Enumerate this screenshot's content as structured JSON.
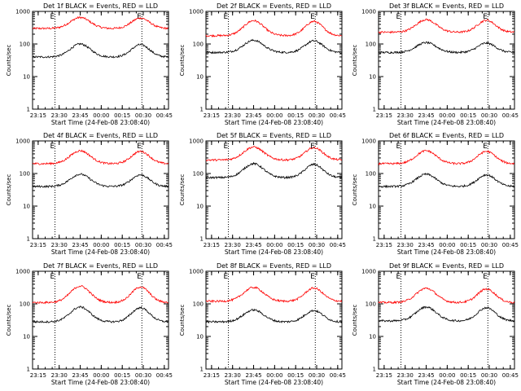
{
  "chart_data": [
    {
      "type": "line",
      "title": "Det 1f BLACK = Events, RED = LLD",
      "xlabel": "Start Time (24-Feb-08 23:08:40)",
      "ylabel": "Counts/sec",
      "x_ticks": [
        "23:15",
        "23:30",
        "23:45",
        "00:00",
        "00:15",
        "00:30",
        "00:45"
      ],
      "y_ticks": [
        "1",
        "10",
        "100",
        "1000"
      ],
      "yscale": "log",
      "ylim": [
        1,
        1000
      ],
      "markers": [
        {
          "label": "E",
          "time": "23:27"
        },
        {
          "label": "E",
          "time": "00:29"
        }
      ],
      "series": [
        {
          "color": "#ff0000",
          "base": 300,
          "peak": 650
        },
        {
          "color": "#000000",
          "base": 40,
          "peak": 100
        }
      ]
    },
    {
      "type": "line",
      "title": "Det 2f BLACK = Events, RED = LLD",
      "xlabel": "Start Time (24-Feb-08 23:08:40)",
      "ylabel": "Counts/sec",
      "x_ticks": [
        "23:15",
        "23:30",
        "23:45",
        "00:00",
        "00:15",
        "00:30",
        "00:45"
      ],
      "y_ticks": [
        "1",
        "10",
        "100",
        "1000"
      ],
      "yscale": "log",
      "ylim": [
        1,
        1000
      ],
      "markers": [
        {
          "label": "E",
          "time": "23:27"
        },
        {
          "label": "E",
          "time": "00:29"
        }
      ],
      "series": [
        {
          "color": "#ff0000",
          "base": 180,
          "peak": 520
        },
        {
          "color": "#000000",
          "base": 55,
          "peak": 130
        }
      ]
    },
    {
      "type": "line",
      "title": "Det 3f BLACK = Events, RED = LLD",
      "xlabel": "Start Time (24-Feb-08 23:08:40)",
      "ylabel": "Counts/sec",
      "x_ticks": [
        "23:15",
        "23:30",
        "23:45",
        "00:00",
        "00:15",
        "00:30",
        "00:45"
      ],
      "y_ticks": [
        "1",
        "10",
        "100",
        "1000"
      ],
      "yscale": "log",
      "ylim": [
        1,
        1000
      ],
      "markers": [
        {
          "label": "E",
          "time": "23:27"
        },
        {
          "label": "E",
          "time": "00:29"
        }
      ],
      "series": [
        {
          "color": "#ff0000",
          "base": 230,
          "peak": 560
        },
        {
          "color": "#000000",
          "base": 55,
          "peak": 110
        }
      ]
    },
    {
      "type": "line",
      "title": "Det 4f BLACK = Events, RED = LLD",
      "xlabel": "Start Time (24-Feb-08 23:08:40)",
      "ylabel": "Counts/sec",
      "x_ticks": [
        "23:15",
        "23:30",
        "23:45",
        "00:00",
        "00:15",
        "00:30",
        "00:45"
      ],
      "y_ticks": [
        "1",
        "10",
        "100",
        "1000"
      ],
      "yscale": "log",
      "ylim": [
        1,
        1000
      ],
      "markers": [
        {
          "label": "E",
          "time": "23:27"
        },
        {
          "label": "E",
          "time": "00:29"
        }
      ],
      "series": [
        {
          "color": "#ff0000",
          "base": 200,
          "peak": 500
        },
        {
          "color": "#000000",
          "base": 40,
          "peak": 95
        }
      ]
    },
    {
      "type": "line",
      "title": "Det 5f BLACK = Events, RED = LLD",
      "xlabel": "Start Time (24-Feb-08 23:08:40)",
      "ylabel": "Counts/sec",
      "x_ticks": [
        "23:15",
        "23:30",
        "23:45",
        "00:00",
        "00:15",
        "00:30",
        "00:45"
      ],
      "y_ticks": [
        "1",
        "10",
        "100",
        "1000"
      ],
      "yscale": "log",
      "ylim": [
        1,
        1000
      ],
      "markers": [
        {
          "label": "E",
          "time": "23:27"
        },
        {
          "label": "E",
          "time": "00:29"
        }
      ],
      "series": [
        {
          "color": "#ff0000",
          "base": 260,
          "peak": 650
        },
        {
          "color": "#000000",
          "base": 75,
          "peak": 200
        }
      ]
    },
    {
      "type": "line",
      "title": "Det 6f BLACK = Events, RED = LLD",
      "xlabel": "Start Time (24-Feb-08 23:08:40)",
      "ylabel": "Counts/sec",
      "x_ticks": [
        "23:15",
        "23:30",
        "23:45",
        "00:00",
        "00:15",
        "00:30",
        "00:45"
      ],
      "y_ticks": [
        "1",
        "10",
        "100",
        "1000"
      ],
      "yscale": "log",
      "ylim": [
        1,
        1000
      ],
      "markers": [
        {
          "label": "E",
          "time": "23:27"
        },
        {
          "label": "E",
          "time": "00:29"
        }
      ],
      "series": [
        {
          "color": "#ff0000",
          "base": 200,
          "peak": 500
        },
        {
          "color": "#000000",
          "base": 40,
          "peak": 95
        }
      ]
    },
    {
      "type": "line",
      "title": "Det 7f BLACK = Events, RED = LLD",
      "xlabel": "Start Time (24-Feb-08 23:08:40)",
      "ylabel": "Counts/sec",
      "x_ticks": [
        "23:15",
        "23:30",
        "23:45",
        "00:00",
        "00:15",
        "00:30",
        "00:45"
      ],
      "y_ticks": [
        "1",
        "10",
        "100",
        "1000"
      ],
      "yscale": "log",
      "ylim": [
        1,
        1000
      ],
      "markers": [
        {
          "label": "E",
          "time": "23:27"
        },
        {
          "label": "E",
          "time": "00:29"
        }
      ],
      "series": [
        {
          "color": "#ff0000",
          "base": 110,
          "peak": 350
        },
        {
          "color": "#000000",
          "base": 28,
          "peak": 80
        }
      ]
    },
    {
      "type": "line",
      "title": "Det 8f BLACK = Events, RED = LLD",
      "xlabel": "Start Time (24-Feb-08 23:08:40)",
      "ylabel": "Counts/sec",
      "x_ticks": [
        "23:15",
        "23:30",
        "23:45",
        "00:00",
        "00:15",
        "00:30",
        "00:45"
      ],
      "y_ticks": [
        "1",
        "10",
        "100",
        "1000"
      ],
      "yscale": "log",
      "ylim": [
        1,
        1000
      ],
      "markers": [
        {
          "label": "E",
          "time": "23:27"
        },
        {
          "label": "E",
          "time": "00:29"
        }
      ],
      "series": [
        {
          "color": "#ff0000",
          "base": 120,
          "peak": 320
        },
        {
          "color": "#000000",
          "base": 28,
          "peak": 65
        }
      ]
    },
    {
      "type": "line",
      "title": "Det 9f BLACK = Events, RED = LLD",
      "xlabel": "Start Time (24-Feb-08 23:08:40)",
      "ylabel": "Counts/sec",
      "x_ticks": [
        "23:15",
        "23:30",
        "23:45",
        "00:00",
        "00:15",
        "00:30",
        "00:45"
      ],
      "y_ticks": [
        "1",
        "10",
        "100",
        "1000"
      ],
      "yscale": "log",
      "ylim": [
        1,
        1000
      ],
      "markers": [
        {
          "label": "E",
          "time": "23:27"
        },
        {
          "label": "E",
          "time": "00:29"
        }
      ],
      "series": [
        {
          "color": "#ff0000",
          "base": 110,
          "peak": 300
        },
        {
          "color": "#000000",
          "base": 30,
          "peak": 80
        }
      ]
    }
  ]
}
